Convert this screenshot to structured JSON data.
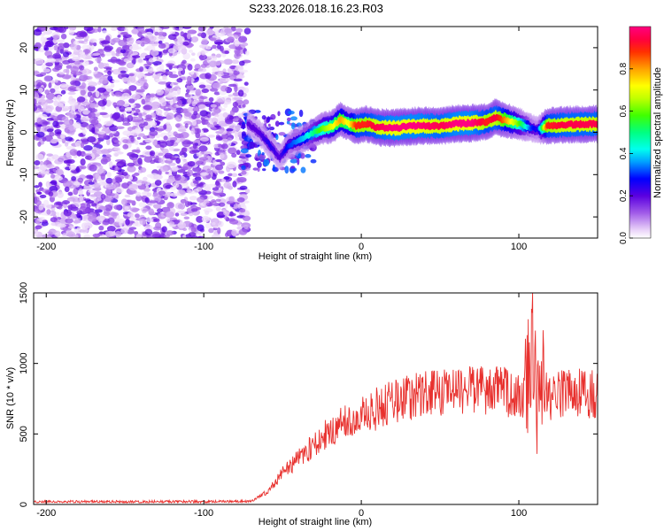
{
  "title": "S233.2026.018.16.23.R03",
  "chart_data": [
    {
      "type": "heatmap",
      "xlabel": "Height of straight line (km)",
      "ylabel": "Frequency (Hz)",
      "xlim": [
        -208,
        150
      ],
      "ylim": [
        -25,
        25
      ],
      "xticks": [
        -200,
        -100,
        0,
        100
      ],
      "xtick_labels": [
        "-200",
        "-100",
        "0",
        "100"
      ],
      "yticks": [
        -20,
        -10,
        0,
        10,
        20
      ],
      "ytick_labels": [
        "-20",
        "-10",
        "0",
        "10",
        "20"
      ],
      "colorbar": {
        "label": "Normalized spectral amplitude",
        "range": [
          0.0,
          1.0
        ],
        "ticks": [
          0.0,
          0.2,
          0.4,
          0.6,
          0.8
        ],
        "tick_labels": [
          "0.0",
          "0.2",
          "0.4",
          "0.6",
          "0.8"
        ]
      },
      "noise_region": {
        "x": [
          -208,
          -72
        ],
        "y": [
          -25,
          25
        ],
        "amplitude": [
          0.0,
          0.2
        ]
      },
      "ridge": {
        "x": [
          -72,
          -65,
          -58,
          -52,
          -46,
          -40,
          -35,
          -30,
          -25,
          -18,
          -13,
          -8,
          -3,
          3,
          10,
          20,
          35,
          50,
          60,
          70,
          80,
          85,
          90,
          100,
          108,
          112,
          118,
          130,
          150
        ],
        "freq": [
          2,
          0,
          -3,
          -6,
          -3,
          -2,
          -1,
          0,
          0.8,
          1.5,
          3,
          2,
          1.5,
          2,
          1.2,
          1,
          1.5,
          1.5,
          2,
          2.2,
          2.5,
          3.5,
          3,
          2,
          1,
          0.5,
          1.5,
          1.8,
          2
        ],
        "amplitude": [
          0.2,
          0.2,
          0.25,
          0.2,
          0.3,
          0.35,
          0.4,
          0.5,
          0.6,
          0.7,
          0.8,
          0.7,
          0.9,
          0.9,
          0.95,
          1.0,
          1.0,
          0.95,
          1.0,
          1.0,
          0.9,
          0.95,
          0.85,
          0.6,
          0.3,
          0.25,
          0.9,
          0.95,
          0.95
        ]
      }
    },
    {
      "type": "line",
      "xlabel": "Height of straight line (km)",
      "ylabel": "SNR (10 * v/v)",
      "xlim": [
        -208,
        150
      ],
      "ylim": [
        0,
        1500
      ],
      "xticks": [
        -200,
        -100,
        0,
        100
      ],
      "xtick_labels": [
        "-200",
        "-100",
        "0",
        "100"
      ],
      "yticks": [
        0,
        500,
        1000,
        1500
      ],
      "ytick_labels": [
        "0",
        "500",
        "1000",
        "1500"
      ],
      "color": "#e8312e",
      "series": [
        {
          "name": "SNR",
          "x": [
            -208,
            -150,
            -100,
            -70,
            -60,
            -50,
            -40,
            -30,
            -20,
            -10,
            0,
            10,
            20,
            30,
            40,
            50,
            60,
            70,
            80,
            90,
            100,
            105,
            110,
            113,
            116,
            120,
            130,
            140,
            150
          ],
          "y": [
            20,
            20,
            20,
            22,
            90,
            220,
            320,
            420,
            520,
            580,
            620,
            680,
            720,
            760,
            780,
            790,
            800,
            800,
            810,
            800,
            790,
            800,
            1100,
            800,
            780,
            770,
            780,
            790,
            780
          ]
        }
      ]
    }
  ]
}
